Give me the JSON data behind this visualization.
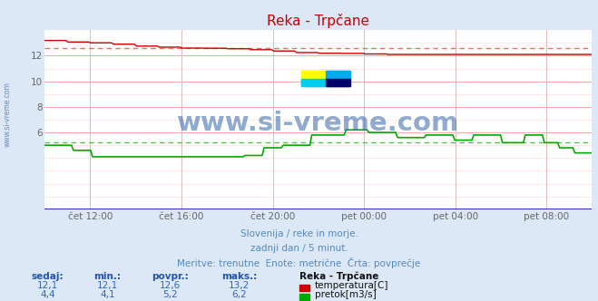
{
  "title": "Reka - Trpčane",
  "bg_color": "#dce8f5",
  "plot_bg_color": "#ffffff",
  "title_color": "#cc0000",
  "x_tick_labels": [
    "čet 12:00",
    "čet 16:00",
    "čet 20:00",
    "pet 00:00",
    "pet 04:00",
    "pet 08:00"
  ],
  "x_tick_positions": [
    0.083,
    0.25,
    0.417,
    0.583,
    0.75,
    0.917
  ],
  "ylim": [
    0,
    14
  ],
  "yticks": [
    6,
    8,
    10,
    12
  ],
  "subtitle1": "Slovenija / reke in morje.",
  "subtitle2": "zadnji dan / 5 minut.",
  "subtitle3": "Meritve: trenutne  Enote: metrične  Črta: povprečje",
  "subtitle_color": "#5588bb",
  "temp_color": "#cc0000",
  "temp_avg_color": "#ff6666",
  "flow_color": "#00aa00",
  "flow_avg_color": "#44cc44",
  "watermark_text": "www.si-vreme.com",
  "watermark_color": "#3366aa",
  "side_label": "www.si-vreme.com",
  "side_label_color": "#6688bb",
  "temp_avg": 12.6,
  "flow_avg": 5.2,
  "table_headers": [
    "sedaj:",
    "min.:",
    "povpr.:",
    "maks.:"
  ],
  "table_row1": [
    "12,1",
    "12,1",
    "12,6",
    "13,2"
  ],
  "table_row2": [
    "4,4",
    "4,1",
    "5,2",
    "6,2"
  ],
  "legend_title": "Reka - Trpčane",
  "legend_label1": "temperatura[C]",
  "legend_label2": "pretok[m3/s]",
  "header_color": "#2255aa",
  "value_color": "#3366bb",
  "legend_title_color": "#111111",
  "legend_value_color": "#111111",
  "grid_major_color": "#ffaaaa",
  "grid_minor_color": "#ffdddd",
  "vgrid_color": "#ddbbbb",
  "bottom_line_color": "#0000cc",
  "tick_label_color": "#666666"
}
